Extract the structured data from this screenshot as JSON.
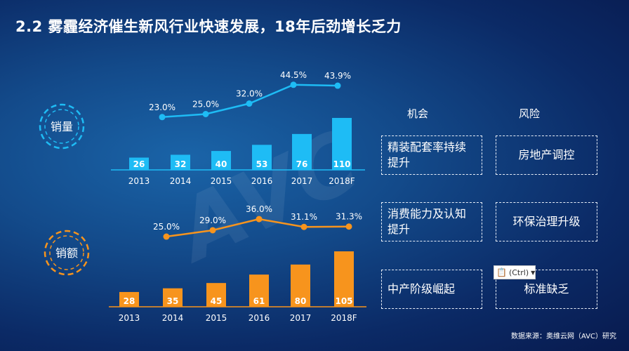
{
  "title": "2.2  雾霾经济催生新风行业快速发展，18年后劲增长乏力",
  "watermark": "AVC",
  "chart_data": [
    {
      "type": "bar",
      "label": "销量",
      "color": "#1ebcf5",
      "categories": [
        "2013",
        "2014",
        "2015",
        "2016",
        "2017",
        "2018F"
      ],
      "values": [
        26,
        32,
        40,
        53,
        76,
        110
      ],
      "growth_line": {
        "color": "#1ebcf5",
        "categories": [
          "2014",
          "2015",
          "2016",
          "2017",
          "2018F"
        ],
        "labels": [
          "23.0%",
          "25.0%",
          "32.0%",
          "44.5%",
          "43.9%"
        ],
        "values": [
          23.0,
          25.0,
          32.0,
          44.5,
          43.9
        ]
      }
    },
    {
      "type": "bar",
      "label": "销额",
      "color": "#f7941d",
      "categories": [
        "2013",
        "2014",
        "2015",
        "2016",
        "2017",
        "2018F"
      ],
      "values": [
        28,
        35,
        45,
        61,
        80,
        105
      ],
      "growth_line": {
        "color": "#f7941d",
        "categories": [
          "2014",
          "2015",
          "2016",
          "2017",
          "2018F"
        ],
        "labels": [
          "25.0%",
          "29.0%",
          "36.0%",
          "31.1%",
          "31.3%"
        ],
        "values": [
          25.0,
          29.0,
          36.0,
          31.1,
          31.3
        ]
      }
    }
  ],
  "matrix": {
    "opportunity_header": "机会",
    "risk_header": "风险",
    "opportunities": [
      "精装配套率持续提升",
      "消费能力及认知提升",
      "中产阶级崛起"
    ],
    "risks": [
      "房地产调控",
      "环保治理升级",
      "标准缺乏"
    ]
  },
  "paste_options": {
    "label": "(Ctrl)",
    "icon": "clipboard-icon"
  },
  "source": "数据来源：奥维云网（AVC）研究"
}
